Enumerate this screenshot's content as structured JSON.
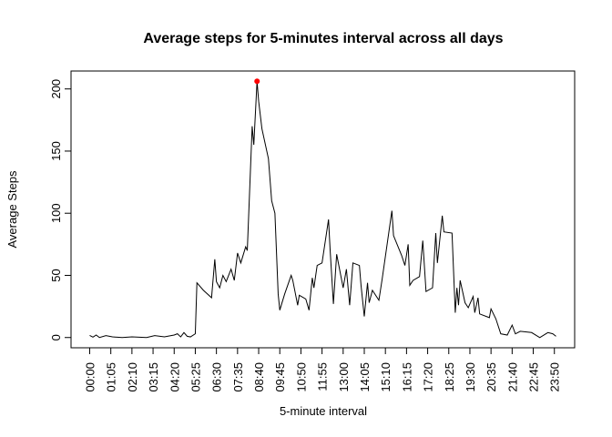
{
  "chart_data": {
    "type": "line",
    "title": "Average steps for 5-minutes interval across all days",
    "x_label": "5-minute interval",
    "y_label": "Average Steps",
    "color": "#000000",
    "highlight_color": "#ff0000",
    "x": [
      0,
      2,
      4,
      6,
      10,
      14,
      20,
      26,
      35,
      40,
      46,
      52,
      54,
      56,
      58,
      60,
      62,
      65,
      66,
      70,
      75,
      77,
      78,
      80,
      82,
      84,
      87,
      89,
      91,
      93,
      96,
      97,
      100,
      101,
      103,
      104,
      106,
      110,
      112,
      114,
      116,
      117,
      120,
      124,
      125,
      128,
      129,
      133,
      135,
      137,
      138,
      140,
      143,
      147,
      148,
      150,
      152,
      156,
      158,
      160,
      162,
      166,
      167,
      169,
      171,
      172,
      174,
      178,
      180,
      186,
      187,
      192,
      194,
      196,
      197,
      199,
      203,
      205,
      207,
      211,
      213,
      214,
      217,
      218,
      223,
      225,
      226,
      227,
      228,
      231,
      233,
      236,
      237,
      239,
      240,
      246,
      247,
      250,
      253,
      257,
      260,
      262,
      265,
      272,
      277,
      282,
      285,
      287
    ],
    "values": [
      1.7,
      0.3,
      2,
      0,
      1.5,
      0.5,
      0,
      0.5,
      0,
      1.5,
      0.5,
      2,
      3,
      0.5,
      4,
      1,
      0.5,
      3,
      44,
      38,
      32,
      63,
      45,
      40,
      50,
      45,
      55,
      46,
      68,
      60,
      73,
      70,
      170,
      155,
      206.17,
      190,
      168,
      144,
      110,
      100,
      35,
      22,
      35,
      50,
      46,
      26,
      34,
      31,
      22,
      48,
      40,
      58,
      60,
      95,
      70,
      27,
      67,
      40,
      55,
      26,
      60,
      58,
      42,
      17,
      44,
      28,
      38,
      30,
      47,
      102,
      82,
      66,
      58,
      75,
      42,
      46,
      49,
      78,
      37,
      40,
      84,
      60,
      98,
      85,
      84,
      20,
      40,
      26,
      46,
      28,
      24,
      33,
      20,
      32,
      19,
      16,
      23,
      15,
      3,
      2,
      10,
      3,
      5,
      4,
      0,
      4,
      3,
      1
    ],
    "xlim": [
      -11.48,
      298.48
    ],
    "ylim": [
      -8.25,
      214.42
    ],
    "yticks": [
      0,
      50,
      100,
      150,
      200
    ],
    "xticks": [
      {
        "value": 0,
        "label": "00:00"
      },
      {
        "value": 13,
        "label": "01:05"
      },
      {
        "value": 26,
        "label": "02:10"
      },
      {
        "value": 39,
        "label": "03:15"
      },
      {
        "value": 52,
        "label": "04:20"
      },
      {
        "value": 65,
        "label": "05:25"
      },
      {
        "value": 78,
        "label": "06:30"
      },
      {
        "value": 91,
        "label": "07:35"
      },
      {
        "value": 104,
        "label": "08:40"
      },
      {
        "value": 117,
        "label": "09:45"
      },
      {
        "value": 130,
        "label": "10:50"
      },
      {
        "value": 143,
        "label": "11:55"
      },
      {
        "value": 156,
        "label": "13:00"
      },
      {
        "value": 169,
        "label": "14:05"
      },
      {
        "value": 182,
        "label": "15:10"
      },
      {
        "value": 195,
        "label": "16:15"
      },
      {
        "value": 208,
        "label": "17:20"
      },
      {
        "value": 221,
        "label": "18:25"
      },
      {
        "value": 234,
        "label": "19:30"
      },
      {
        "value": 247,
        "label": "20:35"
      },
      {
        "value": 260,
        "label": "21:40"
      },
      {
        "value": 273,
        "label": "22:45"
      },
      {
        "value": 286,
        "label": "23:50"
      }
    ]
  }
}
